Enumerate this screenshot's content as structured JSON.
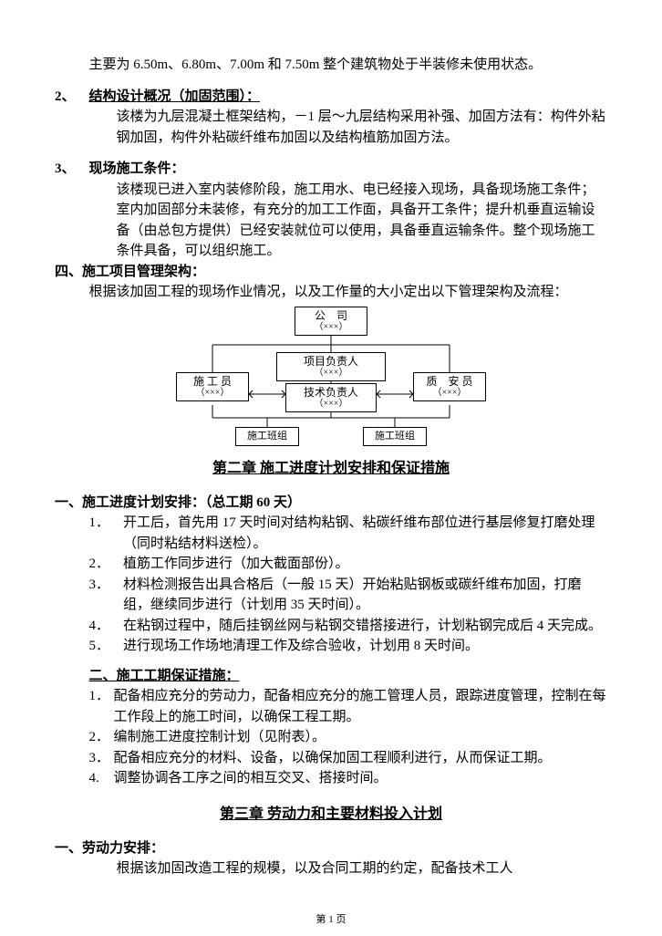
{
  "p_intro": "主要为 6.50m、6.80m、7.00m 和 7.50m 整个建筑物处于半装修未使用状态。",
  "s2_num": "2、",
  "s2_title": "结构设计概况（加固范围）：",
  "s2_body": "该楼为九层混凝土框架结构，－1 层～九层结构采用补强、加固方法有：构件外粘钢加固，构件外粘碳纤维布加固以及结构植筋加固方法。",
  "s3_num": "3、",
  "s3_title": "现场施工条件：",
  "s3_body": "该楼现已进入室内装修阶段，施工用水、电已经接入现场，具备现场施工条件；室内加固部分未装修，有充分的加工工作面，具备开工条件；提升机垂直运输设备（由总包方提供）已经安装就位可以使用，具备垂直运输条件。整个现场施工条件具备，可以组织施工。",
  "s4_title": "四、施工项目管理架构：",
  "s4_body": "根据该加固工程的现场作业情况，以及工作量的大小定出以下管理架构及流程：",
  "org": {
    "company_l1": "公　司",
    "company_l2": "（×××）",
    "pm_l1": "项目负责人",
    "pm_l2": "（×××）",
    "tech_l1": "技术负责人",
    "tech_l2": "（×××）",
    "worker_l1": "施 工 员",
    "worker_l2": "（×××）",
    "qa_l1": "质　安 员",
    "qa_l2": "（×××）",
    "team1": "施工班组",
    "team2": "施工班组"
  },
  "ch2_title": "第二章 施工进度计划安排和保证措施",
  "sch_title": "一、施工进度计划安排：（总工期 60 天）",
  "sch_items": [
    {
      "n": "1．",
      "t": "开工后，首先用 17 天时间对结构粘钢、粘碳纤维布部位进行基层修复打磨处理（同时粘结材料送检）。"
    },
    {
      "n": "2．",
      "t": "植筋工作同步进行（加大截面部份）。"
    },
    {
      "n": "3．",
      "t": "材料检测报告出具合格后（一般 15 天）开始粘贴钢板或碳纤维布加固，打磨组，继续同步进行（计划用 35 天时间）。"
    },
    {
      "n": "4．",
      "t": "在粘钢过程中，随后挂钢丝网与粘钢交错搭接进行，计划粘钢完成后 4 天完成。"
    },
    {
      "n": "5．",
      "t": "进行现场工作场地清理工作及综合验收，计划用 8 天时间。"
    }
  ],
  "gua_title": "二、施工工期保证措施：",
  "gua_items": [
    {
      "n": "1．",
      "t": "配备相应充分的劳动力，配备相应充分的施工管理人员，跟踪进度管理，控制在每工作段上的施工时间，以确保工程工期。"
    },
    {
      "n": "2．",
      "t": "编制施工进度控制计划（见附表）。"
    },
    {
      "n": "3．",
      "t": "配备相应充分的材料、设备，以确保加固工程顺利进行，从而保证工期。"
    },
    {
      "n": "4.",
      "t": "调整协调各工序之间的相互交叉、搭接时间。"
    }
  ],
  "ch3_title": "第三章 劳动力和主要材料投入计划",
  "lab_title": "一、劳动力安排：",
  "lab_body": "根据该加固改造工程的规模，以及合同工期的约定，配备技术工人",
  "footer": "第 1 页"
}
